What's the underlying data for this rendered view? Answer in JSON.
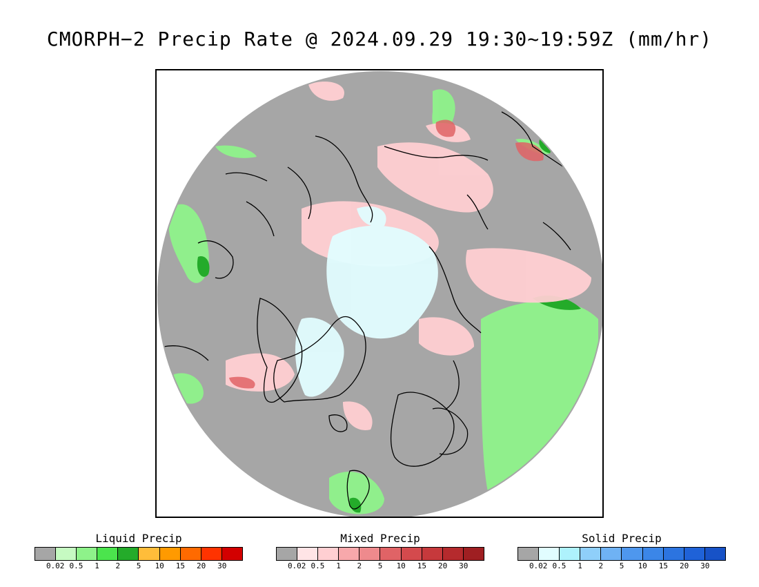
{
  "title": "CMORPH−2 Precip Rate @ 2024.09.29 19:30~19:59Z (mm/hr)",
  "colors": {
    "background_grey": "#a6a6a6",
    "coastline": "#000000"
  },
  "legends": [
    {
      "title": "Liquid Precip",
      "swatches": [
        "#a6a6a6",
        "#c6fac2",
        "#8ef28a",
        "#4be44d",
        "#24ab2a",
        "#ffbd3a",
        "#ff9a00",
        "#ff6a00",
        "#ff3300",
        "#d30000"
      ],
      "ticks": [
        "0.02",
        "0.5",
        "1",
        "2",
        "5",
        "10",
        "15",
        "20",
        "30"
      ]
    },
    {
      "title": "Mixed Precip",
      "swatches": [
        "#a6a6a6",
        "#ffe4e6",
        "#ffcfd2",
        "#f7a8ab",
        "#ee8a8d",
        "#e06366",
        "#d44a4d",
        "#c6393c",
        "#b52a2d",
        "#9f1f22"
      ],
      "ticks": [
        "0.02",
        "0.5",
        "1",
        "2",
        "5",
        "10",
        "15",
        "20",
        "30"
      ]
    },
    {
      "title": "Solid Precip",
      "swatches": [
        "#a6a6a6",
        "#e1fdff",
        "#aef2fc",
        "#8fcffa",
        "#6fb2f4",
        "#4e97ee",
        "#3b86e8",
        "#2c74e0",
        "#1f62d8",
        "#1752c7"
      ],
      "ticks": [
        "0.02",
        "0.5",
        "1",
        "2",
        "5",
        "10",
        "15",
        "20",
        "30"
      ]
    }
  ]
}
